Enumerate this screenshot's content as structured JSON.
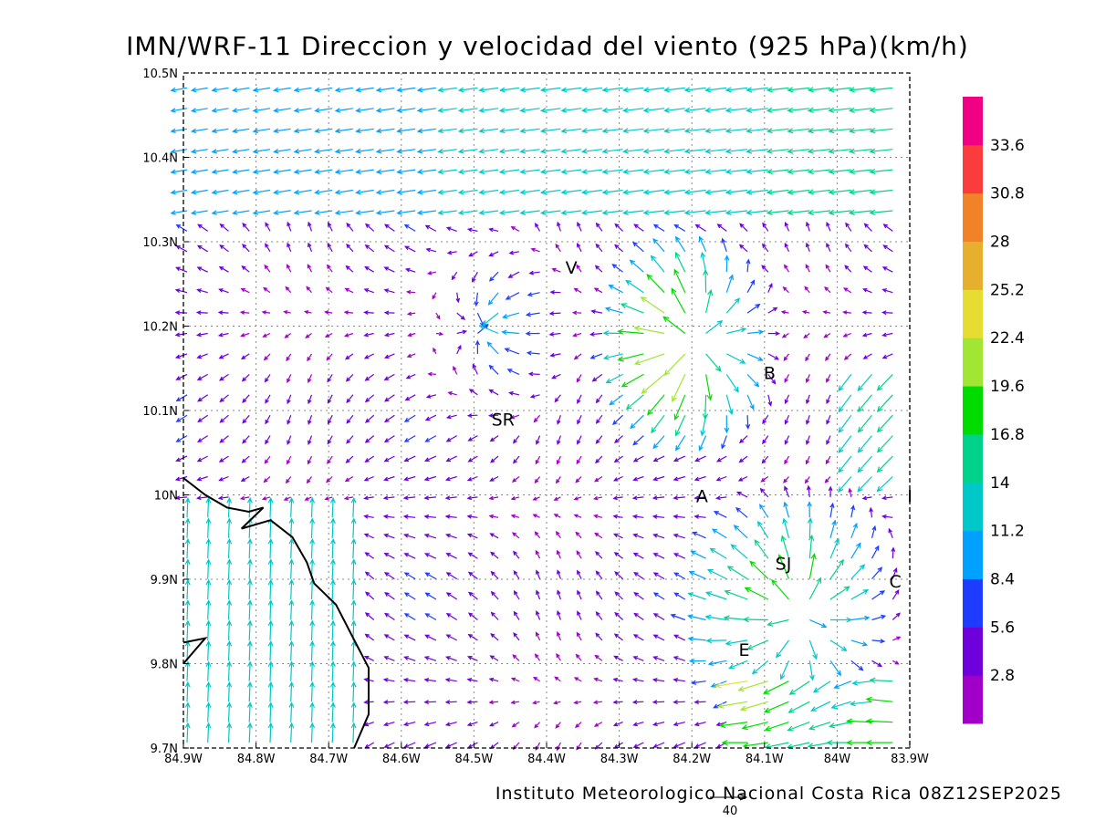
{
  "title": "IMN/WRF-11 Direccion y velocidad del viento (925 hPa)(km/h)",
  "footer": "Instituto Meteorologico Nacional Costa Rica 08Z12SEP2025",
  "reference_vector": {
    "value": "40"
  },
  "map": {
    "lon_range": [
      -84.9,
      -83.9
    ],
    "lat_range": [
      9.7,
      10.5
    ],
    "x_ticks": [
      {
        "lon": -84.9,
        "label": "84.9W"
      },
      {
        "lon": -84.8,
        "label": "84.8W"
      },
      {
        "lon": -84.7,
        "label": "84.7W"
      },
      {
        "lon": -84.6,
        "label": "84.6W"
      },
      {
        "lon": -84.5,
        "label": "84.5W"
      },
      {
        "lon": -84.4,
        "label": "84.4W"
      },
      {
        "lon": -84.3,
        "label": "84.3W"
      },
      {
        "lon": -84.2,
        "label": "84.2W"
      },
      {
        "lon": -84.1,
        "label": "84.1W"
      },
      {
        "lon": -84.0,
        "label": "84W"
      },
      {
        "lon": -83.9,
        "label": "83.9W"
      }
    ],
    "y_ticks": [
      {
        "lat": 10.5,
        "label": "10.5N"
      },
      {
        "lat": 10.4,
        "label": "10.4N"
      },
      {
        "lat": 10.3,
        "label": "10.3N"
      },
      {
        "lat": 10.2,
        "label": "10.2N"
      },
      {
        "lat": 10.1,
        "label": "10.1N"
      },
      {
        "lat": 10.0,
        "label": "10N"
      },
      {
        "lat": 9.9,
        "label": "9.9N"
      },
      {
        "lat": 9.8,
        "label": "9.8N"
      },
      {
        "lat": 9.7,
        "label": "9.7N"
      }
    ],
    "grid": true,
    "cities": [
      {
        "label": "V",
        "lon": -84.366,
        "lat": 10.27
      },
      {
        "label": "SR",
        "lon": -84.46,
        "lat": 10.09
      },
      {
        "label": "B",
        "lon": -84.093,
        "lat": 10.145
      },
      {
        "label": "A",
        "lon": -84.186,
        "lat": 9.999
      },
      {
        "label": "SJ",
        "lon": -84.074,
        "lat": 9.919
      },
      {
        "label": "C",
        "lon": -83.92,
        "lat": 9.898
      },
      {
        "label": "E",
        "lon": -84.128,
        "lat": 9.817
      },
      {
        "label": "I",
        "lon": -83.9,
        "lat": 9.999
      }
    ],
    "coastline": [
      [
        -84.9,
        10.02
      ],
      [
        -84.87,
        10.0
      ],
      [
        -84.84,
        9.985
      ],
      [
        -84.81,
        9.98
      ],
      [
        -84.79,
        9.985
      ],
      [
        -84.82,
        9.96
      ],
      [
        -84.78,
        9.97
      ],
      [
        -84.75,
        9.95
      ],
      [
        -84.73,
        9.92
      ],
      [
        -84.72,
        9.895
      ],
      [
        -84.69,
        9.87
      ],
      [
        -84.66,
        9.82
      ],
      [
        -84.645,
        9.795
      ],
      [
        -84.645,
        9.74
      ],
      [
        -84.665,
        9.7
      ]
    ],
    "coastline2": [
      [
        -84.9,
        9.8
      ],
      [
        -84.87,
        9.83
      ],
      [
        -84.9,
        9.825
      ]
    ]
  },
  "colorbar": {
    "levels": [
      "2.8",
      "5.6",
      "8.4",
      "11.2",
      "14",
      "16.8",
      "19.6",
      "22.4",
      "25.2",
      "28",
      "30.8",
      "33.6"
    ],
    "colors": [
      "#a000c8",
      "#6e00dc",
      "#1e3cff",
      "#00a0ff",
      "#00c8c8",
      "#00d28c",
      "#00dc00",
      "#a0e632",
      "#e6dc32",
      "#e6af2d",
      "#f08228",
      "#fa3c3c",
      "#f00082"
    ]
  }
}
